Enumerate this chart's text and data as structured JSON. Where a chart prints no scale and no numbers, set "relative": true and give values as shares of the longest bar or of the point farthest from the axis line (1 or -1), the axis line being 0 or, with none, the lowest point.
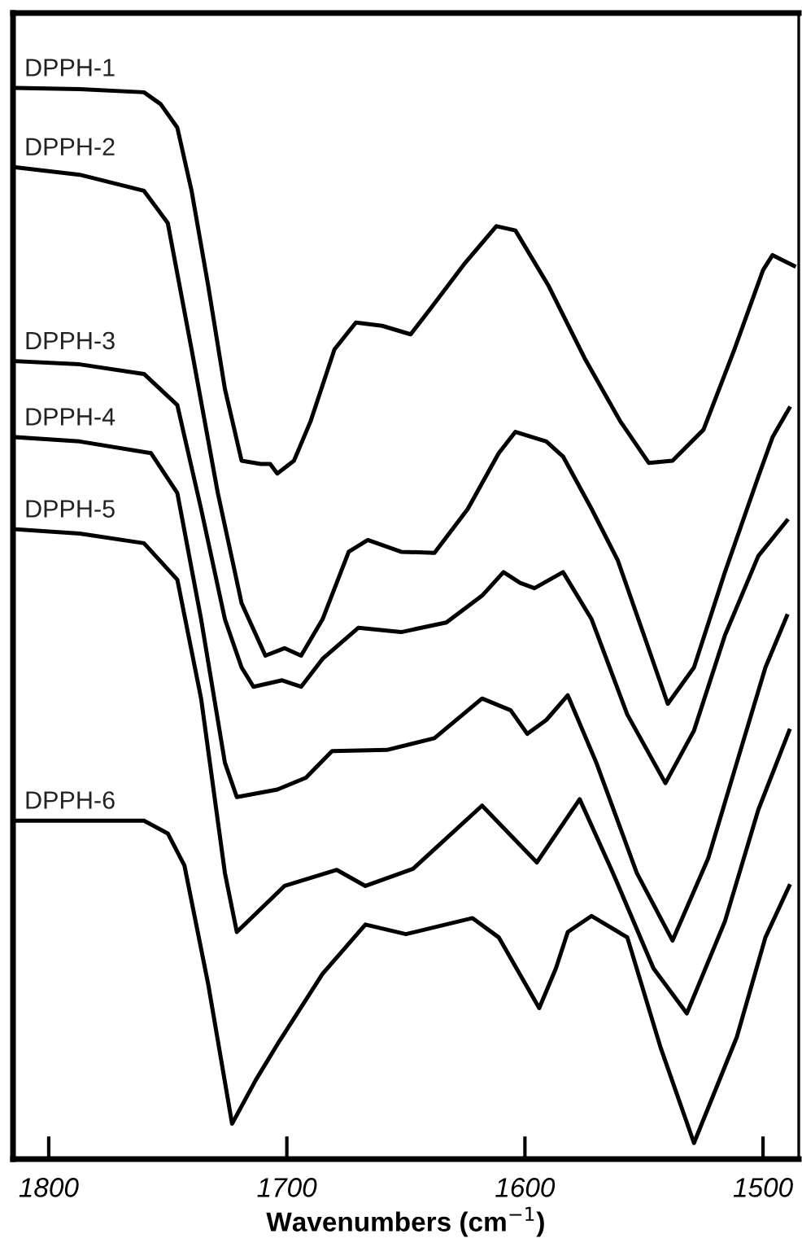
{
  "chart_data": {
    "type": "line",
    "relative": true,
    "xlabel": "Wavenumbers (cm$^{−1}$)",
    "xlim": [
      1815,
      1485
    ],
    "xticks": [
      1800,
      1700,
      1600,
      1500
    ],
    "tick_labels": "x",
    "grid": false,
    "legend": false,
    "marker": "none",
    "line_style": "solid",
    "series": [
      {
        "name": "DPPH-1",
        "color": "#000000",
        "x": [
          1814,
          1787,
          1760,
          1753,
          1746,
          1740,
          1733,
          1726,
          1719,
          1711,
          1707,
          1704,
          1697,
          1690,
          1680,
          1671,
          1660,
          1648,
          1640,
          1625,
          1612,
          1604,
          1590,
          1575,
          1560,
          1548,
          1538,
          1525,
          1512,
          1500,
          1496,
          1487
        ],
        "values": [
          1.0,
          0.999,
          0.996,
          0.985,
          0.963,
          0.904,
          0.815,
          0.719,
          0.652,
          0.649,
          0.649,
          0.64,
          0.652,
          0.689,
          0.756,
          0.781,
          0.778,
          0.77,
          0.793,
          0.837,
          0.871,
          0.867,
          0.815,
          0.748,
          0.689,
          0.65,
          0.652,
          0.681,
          0.756,
          0.83,
          0.844,
          0.834
        ]
      },
      {
        "name": "DPPH-2",
        "color": "#000000",
        "x": [
          1814,
          1787,
          1760,
          1750,
          1740,
          1729,
          1719,
          1709,
          1701,
          1694,
          1685,
          1674,
          1666,
          1652,
          1638,
          1624,
          1611,
          1604,
          1591,
          1584,
          1572,
          1561,
          1550,
          1540,
          1529,
          1516,
          1502,
          1496,
          1489
        ],
        "values": [
          0.926,
          0.919,
          0.904,
          0.874,
          0.756,
          0.622,
          0.519,
          0.47,
          0.477,
          0.47,
          0.504,
          0.567,
          0.578,
          0.567,
          0.566,
          0.607,
          0.659,
          0.679,
          0.67,
          0.656,
          0.607,
          0.559,
          0.489,
          0.425,
          0.459,
          0.548,
          0.637,
          0.674,
          0.701
        ]
      },
      {
        "name": "DPPH-3",
        "color": "#000000",
        "x": [
          1814,
          1787,
          1760,
          1746,
          1736,
          1726,
          1719,
          1714,
          1702,
          1694,
          1685,
          1670,
          1652,
          1633,
          1618,
          1609,
          1602,
          1596,
          1584,
          1572,
          1557,
          1541,
          1529,
          1516,
          1502,
          1490
        ],
        "values": [
          0.745,
          0.742,
          0.733,
          0.704,
          0.607,
          0.504,
          0.459,
          0.441,
          0.447,
          0.441,
          0.467,
          0.496,
          0.492,
          0.501,
          0.526,
          0.548,
          0.538,
          0.533,
          0.548,
          0.504,
          0.415,
          0.351,
          0.4,
          0.489,
          0.563,
          0.596
        ]
      },
      {
        "name": "DPPH-4",
        "color": "#000000",
        "x": [
          1814,
          1787,
          1757,
          1746,
          1736,
          1726,
          1721,
          1704,
          1692,
          1681,
          1658,
          1638,
          1618,
          1606,
          1599,
          1591,
          1582,
          1570,
          1553,
          1538,
          1523,
          1509,
          1499,
          1490
        ],
        "values": [
          0.674,
          0.67,
          0.659,
          0.622,
          0.504,
          0.37,
          0.338,
          0.345,
          0.356,
          0.381,
          0.382,
          0.393,
          0.43,
          0.419,
          0.397,
          0.41,
          0.433,
          0.37,
          0.267,
          0.204,
          0.281,
          0.385,
          0.459,
          0.507
        ]
      },
      {
        "name": "DPPH-5",
        "color": "#000000",
        "x": [
          1814,
          1787,
          1760,
          1746,
          1736,
          1726,
          1721,
          1701,
          1679,
          1667,
          1647,
          1618,
          1595,
          1577,
          1563,
          1546,
          1532,
          1516,
          1502,
          1489
        ],
        "values": [
          0.588,
          0.584,
          0.575,
          0.541,
          0.43,
          0.267,
          0.212,
          0.255,
          0.27,
          0.255,
          0.271,
          0.33,
          0.277,
          0.336,
          0.267,
          0.178,
          0.136,
          0.222,
          0.326,
          0.4
        ]
      },
      {
        "name": "DPPH-6",
        "color": "#000000",
        "x": [
          1814,
          1760,
          1750,
          1743,
          1733,
          1723,
          1713,
          1704,
          1685,
          1667,
          1650,
          1622,
          1611,
          1594,
          1587,
          1582,
          1572,
          1557,
          1543,
          1529,
          1511,
          1499,
          1489
        ],
        "values": [
          0.316,
          0.316,
          0.304,
          0.274,
          0.163,
          0.033,
          0.074,
          0.107,
          0.173,
          0.219,
          0.21,
          0.225,
          0.207,
          0.141,
          0.178,
          0.212,
          0.227,
          0.207,
          0.104,
          0.015,
          0.114,
          0.207,
          0.255
        ]
      }
    ]
  }
}
